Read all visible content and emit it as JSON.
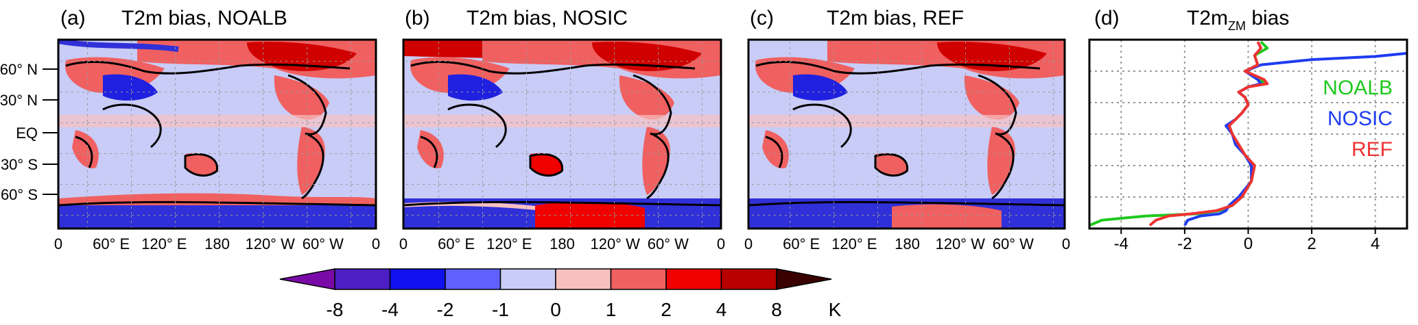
{
  "panels": [
    {
      "letter": "(a)",
      "title": "T2m bias, NOALB"
    },
    {
      "letter": "(b)",
      "title": "T2m bias, NOSIC"
    },
    {
      "letter": "(c)",
      "title": "T2m bias, REF"
    }
  ],
  "map_axes": {
    "lat_ticks": [
      "60° N",
      "30° N",
      "EQ",
      "30° S",
      "60° S"
    ],
    "lon_ticks": [
      "0",
      "60° E",
      "120° E",
      "180",
      "120° W",
      "60° W",
      "0"
    ]
  },
  "colorbar": {
    "levels": [
      "-8",
      "-4",
      "-2",
      "-1",
      "0",
      "1",
      "2",
      "4",
      "8"
    ],
    "unit": "K",
    "colors": [
      "#7a0aa8",
      "#4b1fc4",
      "#1010f0",
      "#6060ff",
      "#c8ccf6",
      "#f8c0c0",
      "#f06060",
      "#f00000",
      "#b80000",
      "#3a0000"
    ]
  },
  "chart_data": {
    "type": "line",
    "letter": "(d)",
    "title_main": "T2m",
    "title_sub": "ZM",
    "title_tail": " bias",
    "xlim": [
      -5,
      5
    ],
    "ylim": [
      -90,
      90
    ],
    "x_ticks": [
      "-4",
      "-2",
      "0",
      "2",
      "4"
    ],
    "grid": true,
    "legend_placement": "right",
    "series": [
      {
        "name": "NOALB",
        "color": "#1ec81e",
        "x": [
          -5.0,
          -4.6,
          -3.2,
          -1.6,
          -0.9,
          -0.5,
          -0.2,
          0.1,
          0.2,
          -0.1,
          -0.3,
          -0.5,
          -0.6,
          -0.4,
          -0.2,
          0.0,
          -0.1,
          -0.3,
          0.0,
          0.5,
          0.4,
          -0.1,
          0.3,
          0.2,
          0.6,
          0.4
        ],
        "y": [
          -87,
          -82,
          -78,
          -76,
          -73,
          -68,
          -60,
          -45,
          -30,
          -20,
          -10,
          0,
          8,
          14,
          20,
          28,
          35,
          40,
          45,
          48,
          52,
          60,
          66,
          75,
          82,
          88
        ]
      },
      {
        "name": "NOSIC",
        "color": "#1e3cf0",
        "x": [
          -2.0,
          -1.9,
          -1.5,
          -0.9,
          -0.7,
          -0.6,
          -0.3,
          0.1,
          0.1,
          -0.1,
          -0.4,
          -0.5,
          -0.7,
          -0.4,
          -0.2,
          0.0,
          -0.1,
          -0.3,
          0.0,
          0.4,
          0.3,
          -0.1,
          0.4,
          2.0,
          4.0,
          5.0
        ],
        "y": [
          -87,
          -82,
          -78,
          -76,
          -73,
          -68,
          -60,
          -45,
          -30,
          -20,
          -10,
          0,
          8,
          14,
          20,
          28,
          35,
          40,
          45,
          48,
          52,
          60,
          66,
          71,
          74,
          77
        ]
      },
      {
        "name": "REF",
        "color": "#f03232",
        "x": [
          -3.1,
          -2.9,
          -2.5,
          -1.8,
          -1.0,
          -0.5,
          -0.2,
          0.1,
          0.2,
          -0.1,
          -0.3,
          -0.5,
          -0.6,
          -0.4,
          -0.2,
          0.0,
          -0.1,
          -0.3,
          0.0,
          0.6,
          0.5,
          -0.1,
          0.3,
          0.2,
          0.4,
          0.3
        ],
        "y": [
          -87,
          -82,
          -78,
          -76,
          -73,
          -68,
          -60,
          -45,
          -30,
          -20,
          -10,
          0,
          8,
          14,
          20,
          28,
          35,
          40,
          45,
          48,
          52,
          60,
          66,
          75,
          82,
          88
        ]
      }
    ]
  }
}
